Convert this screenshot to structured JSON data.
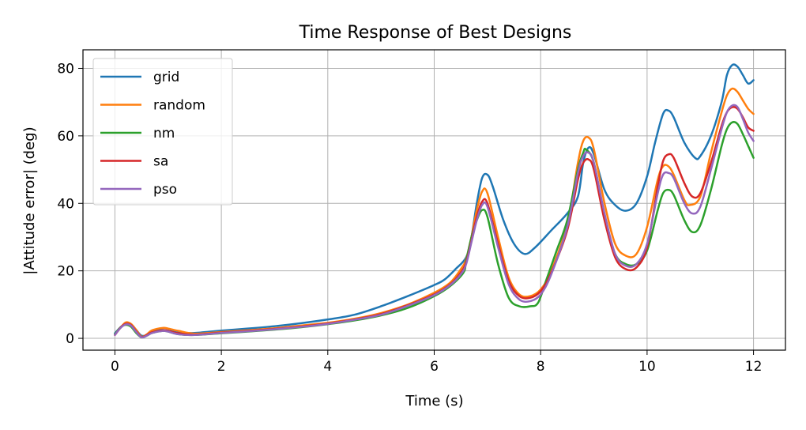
{
  "chart_data": {
    "type": "line",
    "title": "Time Response of Best Designs",
    "xlabel": "Time (s)",
    "ylabel": "|Attitude error| (deg)",
    "xlim": [
      -0.6,
      12.6
    ],
    "ylim": [
      -3.5,
      85.5
    ],
    "xticks": [
      0,
      2,
      4,
      6,
      8,
      10,
      12
    ],
    "yticks": [
      0,
      20,
      40,
      60,
      80
    ],
    "grid": true,
    "legend_position": "top-left",
    "series": [
      {
        "name": "grid",
        "color": "#1f77b4",
        "points": [
          [
            0,
            1.5
          ],
          [
            0.1,
            3.2
          ],
          [
            0.2,
            4.4
          ],
          [
            0.3,
            4.2
          ],
          [
            0.4,
            2.5
          ],
          [
            0.5,
            0.8
          ],
          [
            0.6,
            1.0
          ],
          [
            0.7,
            1.9
          ],
          [
            0.85,
            2.5
          ],
          [
            1.0,
            2.3
          ],
          [
            1.2,
            1.7
          ],
          [
            1.5,
            1.6
          ],
          [
            2.0,
            2.3
          ],
          [
            2.5,
            2.9
          ],
          [
            3.0,
            3.6
          ],
          [
            3.5,
            4.5
          ],
          [
            4.0,
            5.6
          ],
          [
            4.5,
            7.0
          ],
          [
            5.0,
            9.5
          ],
          [
            5.5,
            12.5
          ],
          [
            6.0,
            15.8
          ],
          [
            6.2,
            17.5
          ],
          [
            6.4,
            20.5
          ],
          [
            6.6,
            24.0
          ],
          [
            6.7,
            30.0
          ],
          [
            6.8,
            40.0
          ],
          [
            6.9,
            47.5
          ],
          [
            7.0,
            48.5
          ],
          [
            7.1,
            45.0
          ],
          [
            7.3,
            35.0
          ],
          [
            7.5,
            28.0
          ],
          [
            7.7,
            25.0
          ],
          [
            7.9,
            27.0
          ],
          [
            8.2,
            32.0
          ],
          [
            8.5,
            37.0
          ],
          [
            8.7,
            42.0
          ],
          [
            8.8,
            52.0
          ],
          [
            8.9,
            56.5
          ],
          [
            9.0,
            54.5
          ],
          [
            9.2,
            44.0
          ],
          [
            9.4,
            39.5
          ],
          [
            9.6,
            37.8
          ],
          [
            9.8,
            40.0
          ],
          [
            10.0,
            48.0
          ],
          [
            10.15,
            58.0
          ],
          [
            10.3,
            66.5
          ],
          [
            10.4,
            67.5
          ],
          [
            10.5,
            65.5
          ],
          [
            10.7,
            58.0
          ],
          [
            10.9,
            53.5
          ],
          [
            11.0,
            54.0
          ],
          [
            11.2,
            60.0
          ],
          [
            11.4,
            70.0
          ],
          [
            11.5,
            78.0
          ],
          [
            11.6,
            81.0
          ],
          [
            11.7,
            80.5
          ],
          [
            11.8,
            78.0
          ],
          [
            11.9,
            75.5
          ],
          [
            12.0,
            76.5
          ]
        ]
      },
      {
        "name": "random",
        "color": "#ff7f0e",
        "points": [
          [
            0,
            1.0
          ],
          [
            0.1,
            3.0
          ],
          [
            0.2,
            4.7
          ],
          [
            0.3,
            4.3
          ],
          [
            0.4,
            2.5
          ],
          [
            0.5,
            0.5
          ],
          [
            0.6,
            1.2
          ],
          [
            0.7,
            2.4
          ],
          [
            0.9,
            3.1
          ],
          [
            1.0,
            2.9
          ],
          [
            1.2,
            2.2
          ],
          [
            1.5,
            1.4
          ],
          [
            2.0,
            1.9
          ],
          [
            2.5,
            2.4
          ],
          [
            3.0,
            3.0
          ],
          [
            3.5,
            3.8
          ],
          [
            4.0,
            4.6
          ],
          [
            4.5,
            5.8
          ],
          [
            5.0,
            7.5
          ],
          [
            5.5,
            10.0
          ],
          [
            6.0,
            13.5
          ],
          [
            6.3,
            16.5
          ],
          [
            6.5,
            20.5
          ],
          [
            6.6,
            23.5
          ],
          [
            6.7,
            30.0
          ],
          [
            6.8,
            38.0
          ],
          [
            6.9,
            43.5
          ],
          [
            7.0,
            43.0
          ],
          [
            7.2,
            30.0
          ],
          [
            7.4,
            18.0
          ],
          [
            7.6,
            13.0
          ],
          [
            7.8,
            12.5
          ],
          [
            8.0,
            14.5
          ],
          [
            8.2,
            20.0
          ],
          [
            8.5,
            34.0
          ],
          [
            8.7,
            52.0
          ],
          [
            8.8,
            58.5
          ],
          [
            8.9,
            59.5
          ],
          [
            9.0,
            56.0
          ],
          [
            9.2,
            40.0
          ],
          [
            9.4,
            28.0
          ],
          [
            9.6,
            24.5
          ],
          [
            9.8,
            25.0
          ],
          [
            10.0,
            33.0
          ],
          [
            10.2,
            47.0
          ],
          [
            10.3,
            51.0
          ],
          [
            10.4,
            51.0
          ],
          [
            10.5,
            48.5
          ],
          [
            10.7,
            41.0
          ],
          [
            10.8,
            39.5
          ],
          [
            11.0,
            42.0
          ],
          [
            11.2,
            55.0
          ],
          [
            11.4,
            67.0
          ],
          [
            11.5,
            72.0
          ],
          [
            11.6,
            74.0
          ],
          [
            11.7,
            73.0
          ],
          [
            11.8,
            70.5
          ],
          [
            11.9,
            68.0
          ],
          [
            12.0,
            66.5
          ]
        ]
      },
      {
        "name": "nm",
        "color": "#2ca02c",
        "points": [
          [
            0,
            1.2
          ],
          [
            0.1,
            3.2
          ],
          [
            0.2,
            4.0
          ],
          [
            0.3,
            3.5
          ],
          [
            0.4,
            1.6
          ],
          [
            0.5,
            0.3
          ],
          [
            0.6,
            0.8
          ],
          [
            0.7,
            1.6
          ],
          [
            0.9,
            2.2
          ],
          [
            1.0,
            2.0
          ],
          [
            1.2,
            1.2
          ],
          [
            1.5,
            1.0
          ],
          [
            2.0,
            1.5
          ],
          [
            2.5,
            2.0
          ],
          [
            3.0,
            2.6
          ],
          [
            3.5,
            3.3
          ],
          [
            4.0,
            4.2
          ],
          [
            4.5,
            5.3
          ],
          [
            5.0,
            6.8
          ],
          [
            5.5,
            9.0
          ],
          [
            6.0,
            12.5
          ],
          [
            6.3,
            15.5
          ],
          [
            6.55,
            19.5
          ],
          [
            6.6,
            23.0
          ],
          [
            6.7,
            30.0
          ],
          [
            6.8,
            35.0
          ],
          [
            6.9,
            38.0
          ],
          [
            7.0,
            36.0
          ],
          [
            7.2,
            22.0
          ],
          [
            7.4,
            12.0
          ],
          [
            7.6,
            9.5
          ],
          [
            7.8,
            9.5
          ],
          [
            7.95,
            10.5
          ],
          [
            8.1,
            17.0
          ],
          [
            8.3,
            26.0
          ],
          [
            8.5,
            35.0
          ],
          [
            8.7,
            50.0
          ],
          [
            8.8,
            55.0
          ],
          [
            8.85,
            56.0
          ],
          [
            9.0,
            52.0
          ],
          [
            9.2,
            36.0
          ],
          [
            9.4,
            25.0
          ],
          [
            9.6,
            22.0
          ],
          [
            9.8,
            22.0
          ],
          [
            10.0,
            26.0
          ],
          [
            10.2,
            38.0
          ],
          [
            10.3,
            43.0
          ],
          [
            10.4,
            44.0
          ],
          [
            10.5,
            42.5
          ],
          [
            10.7,
            35.0
          ],
          [
            10.85,
            31.5
          ],
          [
            11.0,
            33.5
          ],
          [
            11.2,
            44.0
          ],
          [
            11.4,
            57.0
          ],
          [
            11.5,
            62.0
          ],
          [
            11.6,
            64.0
          ],
          [
            11.7,
            63.5
          ],
          [
            11.8,
            60.5
          ],
          [
            11.9,
            57.0
          ],
          [
            12.0,
            53.5
          ]
        ]
      },
      {
        "name": "sa",
        "color": "#d62728",
        "points": [
          [
            0,
            1.0
          ],
          [
            0.1,
            3.1
          ],
          [
            0.2,
            4.3
          ],
          [
            0.3,
            4.0
          ],
          [
            0.4,
            2.1
          ],
          [
            0.5,
            0.4
          ],
          [
            0.6,
            1.0
          ],
          [
            0.7,
            1.8
          ],
          [
            0.9,
            2.4
          ],
          [
            1.0,
            2.2
          ],
          [
            1.2,
            1.5
          ],
          [
            1.5,
            1.1
          ],
          [
            2.0,
            1.7
          ],
          [
            2.5,
            2.2
          ],
          [
            3.0,
            2.8
          ],
          [
            3.5,
            3.5
          ],
          [
            4.0,
            4.4
          ],
          [
            4.5,
            5.6
          ],
          [
            5.0,
            7.2
          ],
          [
            5.5,
            9.8
          ],
          [
            6.0,
            13.0
          ],
          [
            6.3,
            16.0
          ],
          [
            6.5,
            19.5
          ],
          [
            6.6,
            22.5
          ],
          [
            6.7,
            29.0
          ],
          [
            6.8,
            36.0
          ],
          [
            6.9,
            40.5
          ],
          [
            7.0,
            40.0
          ],
          [
            7.2,
            28.0
          ],
          [
            7.4,
            17.0
          ],
          [
            7.6,
            12.5
          ],
          [
            7.8,
            12.0
          ],
          [
            8.0,
            14.0
          ],
          [
            8.2,
            19.5
          ],
          [
            8.5,
            32.0
          ],
          [
            8.7,
            47.0
          ],
          [
            8.8,
            52.0
          ],
          [
            8.9,
            53.0
          ],
          [
            9.0,
            50.0
          ],
          [
            9.2,
            35.0
          ],
          [
            9.4,
            24.0
          ],
          [
            9.6,
            20.5
          ],
          [
            9.8,
            21.0
          ],
          [
            10.0,
            27.0
          ],
          [
            10.2,
            45.0
          ],
          [
            10.3,
            52.5
          ],
          [
            10.4,
            54.5
          ],
          [
            10.5,
            53.5
          ],
          [
            10.7,
            46.0
          ],
          [
            10.85,
            42.0
          ],
          [
            11.0,
            43.0
          ],
          [
            11.2,
            52.0
          ],
          [
            11.4,
            63.0
          ],
          [
            11.5,
            67.0
          ],
          [
            11.6,
            68.5
          ],
          [
            11.7,
            68.0
          ],
          [
            11.8,
            65.5
          ],
          [
            11.9,
            62.5
          ],
          [
            12.0,
            61.5
          ]
        ]
      },
      {
        "name": "pso",
        "color": "#9467bd",
        "points": [
          [
            0,
            1.0
          ],
          [
            0.1,
            3.0
          ],
          [
            0.2,
            4.1
          ],
          [
            0.3,
            3.8
          ],
          [
            0.4,
            1.9
          ],
          [
            0.5,
            0.3
          ],
          [
            0.6,
            0.8
          ],
          [
            0.7,
            1.6
          ],
          [
            0.9,
            2.2
          ],
          [
            1.0,
            2.0
          ],
          [
            1.2,
            1.2
          ],
          [
            1.5,
            1.0
          ],
          [
            2.0,
            1.6
          ],
          [
            2.5,
            2.1
          ],
          [
            3.0,
            2.7
          ],
          [
            3.5,
            3.4
          ],
          [
            4.0,
            4.3
          ],
          [
            4.5,
            5.5
          ],
          [
            5.0,
            7.0
          ],
          [
            5.5,
            9.6
          ],
          [
            6.0,
            12.8
          ],
          [
            6.3,
            15.8
          ],
          [
            6.5,
            19.0
          ],
          [
            6.6,
            22.0
          ],
          [
            6.7,
            28.5
          ],
          [
            6.8,
            35.0
          ],
          [
            6.9,
            39.5
          ],
          [
            7.0,
            39.0
          ],
          [
            7.2,
            27.0
          ],
          [
            7.4,
            16.0
          ],
          [
            7.6,
            11.5
          ],
          [
            7.8,
            11.0
          ],
          [
            8.0,
            13.0
          ],
          [
            8.2,
            19.0
          ],
          [
            8.5,
            33.0
          ],
          [
            8.7,
            49.0
          ],
          [
            8.8,
            54.0
          ],
          [
            8.9,
            55.0
          ],
          [
            9.0,
            52.0
          ],
          [
            9.2,
            37.0
          ],
          [
            9.4,
            25.0
          ],
          [
            9.6,
            21.5
          ],
          [
            9.8,
            22.0
          ],
          [
            10.0,
            28.0
          ],
          [
            10.2,
            43.0
          ],
          [
            10.3,
            48.5
          ],
          [
            10.4,
            49.0
          ],
          [
            10.5,
            47.5
          ],
          [
            10.7,
            40.0
          ],
          [
            10.85,
            37.0
          ],
          [
            11.0,
            39.0
          ],
          [
            11.2,
            50.0
          ],
          [
            11.4,
            62.0
          ],
          [
            11.5,
            67.0
          ],
          [
            11.6,
            69.0
          ],
          [
            11.7,
            68.5
          ],
          [
            11.8,
            65.0
          ],
          [
            11.9,
            61.0
          ],
          [
            12.0,
            58.5
          ]
        ]
      }
    ]
  }
}
